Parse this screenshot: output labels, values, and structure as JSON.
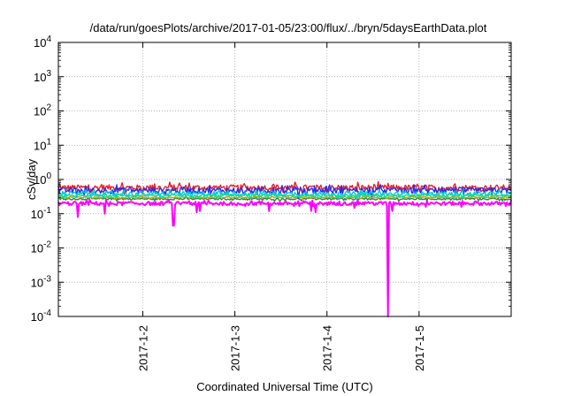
{
  "chart_data": {
    "type": "line",
    "title": "/data/run/goesPlots/archive/2017-01-05/23:00/flux/../bryn/5daysEarthData.plot",
    "xlabel": "Coordinated Universal Time (UTC)",
    "ylabel": "cSv/day",
    "yscale": "log",
    "ylim": [
      0.0001,
      10000
    ],
    "xlim": [
      "2017-01-01T02:00",
      "2017-01-06T00:00"
    ],
    "grid": true,
    "y_ticks": [
      {
        "value": 0.0001,
        "base": "10",
        "exp": "-4"
      },
      {
        "value": 0.001,
        "base": "10",
        "exp": "-3"
      },
      {
        "value": 0.01,
        "base": "10",
        "exp": "-2"
      },
      {
        "value": 0.1,
        "base": "10",
        "exp": "-1"
      },
      {
        "value": 1,
        "base": "10",
        "exp": "0"
      },
      {
        "value": 10,
        "base": "10",
        "exp": "1"
      },
      {
        "value": 100,
        "base": "10",
        "exp": "2"
      },
      {
        "value": 1000,
        "base": "10",
        "exp": "3"
      },
      {
        "value": 10000,
        "base": "10",
        "exp": "4"
      }
    ],
    "x_ticks": [
      {
        "value": "2017-01-02T00:00",
        "label": "2017-1-2"
      },
      {
        "value": "2017-01-03T00:00",
        "label": "2017-1-3"
      },
      {
        "value": "2017-01-04T00:00",
        "label": "2017-1-4"
      },
      {
        "value": "2017-01-05T00:00",
        "label": "2017-1-5"
      }
    ],
    "series": [
      {
        "color": "#e8202a",
        "level": 0.58,
        "noise": 0.2,
        "dips": []
      },
      {
        "color": "#1f8a3a",
        "level": 0.27,
        "noise": 0.06,
        "dips": []
      },
      {
        "color": "#2a2ae8",
        "level": 0.48,
        "noise": 0.2,
        "dips": []
      },
      {
        "color": "#ff00ff",
        "level": 0.2,
        "noise": 0.12,
        "dips": [
          {
            "x": "2017-01-01T07:00",
            "y": 0.08
          },
          {
            "x": "2017-01-01T14:00",
            "y": 0.1
          },
          {
            "x": "2017-01-02T08:00",
            "y": 0.045
          },
          {
            "x": "2017-01-02T14:00",
            "y": 0.11
          },
          {
            "x": "2017-01-02T15:00",
            "y": 0.12
          },
          {
            "x": "2017-01-03T09:00",
            "y": 0.12
          },
          {
            "x": "2017-01-03T20:00",
            "y": 0.12
          },
          {
            "x": "2017-01-03T21:00",
            "y": 0.11
          },
          {
            "x": "2017-01-04T16:00",
            "y": 0.0001
          },
          {
            "x": "2017-01-04T17:00",
            "y": 0.12
          }
        ]
      },
      {
        "color": "#00c8e0",
        "level": 0.38,
        "noise": 0.15,
        "dips": []
      },
      {
        "color": "#c8a000",
        "level": 0.3,
        "noise": 0.05,
        "dips": []
      },
      {
        "color": "#00e0a0",
        "level": 0.34,
        "noise": 0.08,
        "dips": []
      }
    ]
  }
}
